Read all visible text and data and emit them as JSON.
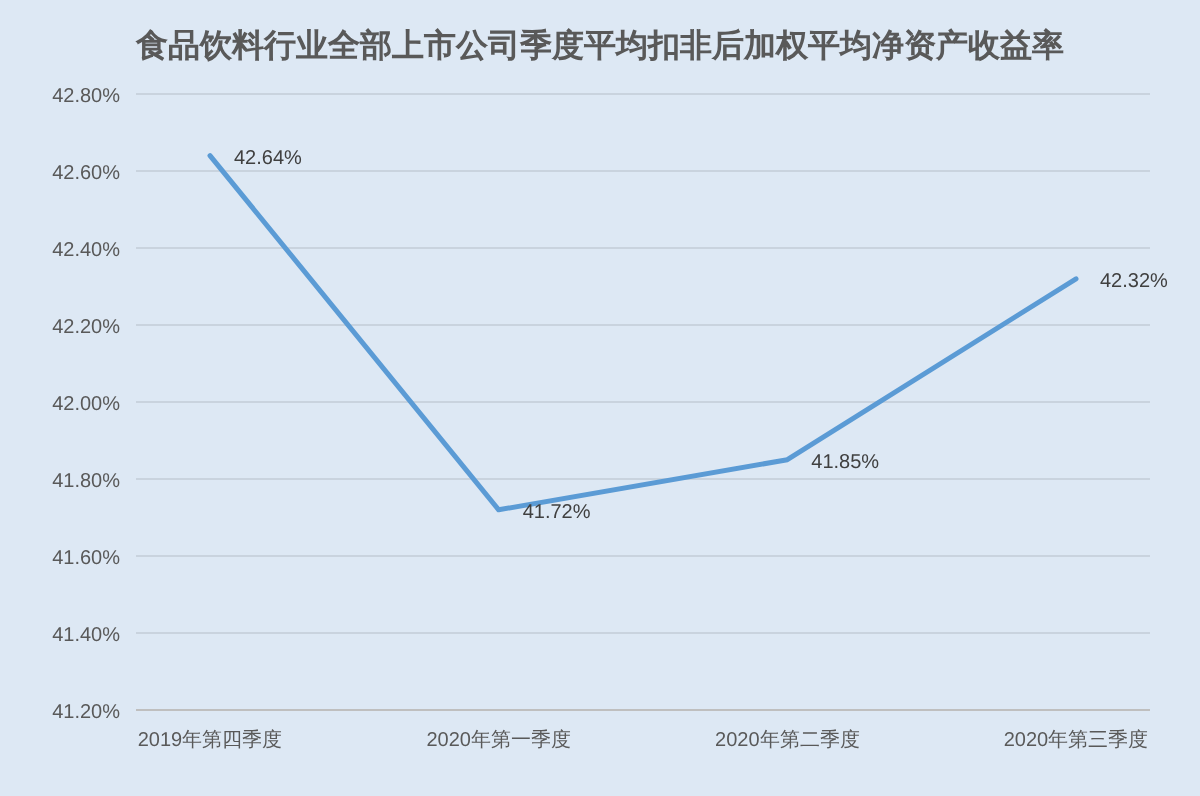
{
  "chart_data": {
    "type": "line",
    "title": "食品饮料行业全部上市公司季度平均扣非后加权平均净资产收益率",
    "categories": [
      "2019年第四季度",
      "2020年第一季度",
      "2020年第二季度",
      "2020年第三季度"
    ],
    "series": [
      {
        "color": "#5b9bd5",
        "values": [
          42.64,
          41.72,
          41.85,
          42.32
        ],
        "value_labels": [
          "42.64%",
          "41.72%",
          "41.85%",
          "42.32%"
        ]
      }
    ],
    "ylim": [
      41.2,
      42.8
    ],
    "yticks": [
      {
        "value": 41.2,
        "label": "41.20%"
      },
      {
        "value": 41.4,
        "label": "41.40%"
      },
      {
        "value": 41.6,
        "label": "41.60%"
      },
      {
        "value": 41.8,
        "label": "41.80%"
      },
      {
        "value": 42.0,
        "label": "42.00%"
      },
      {
        "value": 42.2,
        "label": "42.20%"
      },
      {
        "value": 42.4,
        "label": "42.40%"
      },
      {
        "value": 42.6,
        "label": "42.60%"
      },
      {
        "value": 42.8,
        "label": "42.80%"
      }
    ],
    "grid": "y"
  }
}
